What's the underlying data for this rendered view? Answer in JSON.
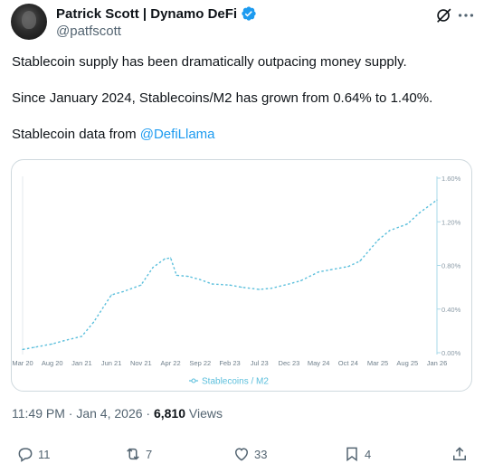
{
  "author": {
    "display_name": "Patrick Scott | Dynamo DeFi",
    "handle": "@patfscott"
  },
  "icons": {
    "verified": "verified-badge-icon",
    "grok": "grok-icon",
    "more": "more-icon",
    "reply": "reply-icon",
    "retweet": "retweet-icon",
    "like": "heart-icon",
    "bookmark": "bookmark-icon",
    "share": "share-icon"
  },
  "tweet": {
    "line1": "Stablecoin supply has been dramatically outpacing money supply.",
    "line2": "Since January 2024, Stablecoins/M2 has grown from 0.64% to 1.40%.",
    "line3_prefix": "Stablecoin data from ",
    "line3_mention": "@DefiLlama"
  },
  "meta": {
    "time": "11:49 PM",
    "separator": "·",
    "date": "Jan 4, 2026",
    "views_count": "6,810",
    "views_label": "Views"
  },
  "actions": {
    "replies": "11",
    "reposts": "7",
    "likes": "33",
    "bookmarks": "4"
  },
  "colors": {
    "accent": "#1d9bf0",
    "series": "#5bbfdc",
    "text_secondary": "#536471"
  },
  "chart_data": {
    "type": "line",
    "legend_label": "Stablecoins / M2",
    "legend_position": "bottom-center",
    "grid": false,
    "y_axis_side": "right",
    "y_ticks": [
      "1.60%",
      "1.20%",
      "0.80%",
      "0.40%",
      "0.00%"
    ],
    "ylim": [
      0,
      1.6
    ],
    "x_tick_labels": [
      "Mar 20",
      "Aug 20",
      "Jan 21",
      "Jun 21",
      "Nov 21",
      "Apr 22",
      "Sep 22",
      "Feb 23",
      "Jul 23",
      "Dec 23",
      "May 24",
      "Oct 24",
      "Mar 25",
      "Aug 25",
      "Jan 26"
    ],
    "series": [
      {
        "name": "Stablecoins / M2",
        "x": [
          "Mar 20",
          "May 20",
          "Aug 20",
          "Oct 20",
          "Jan 21",
          "Mar 21",
          "Jun 21",
          "Aug 21",
          "Nov 21",
          "Jan 22",
          "Mar 22",
          "Apr 22",
          "May 22",
          "Jul 22",
          "Sep 22",
          "Nov 22",
          "Feb 23",
          "Apr 23",
          "Jul 23",
          "Sep 23",
          "Dec 23",
          "Feb 24",
          "May 24",
          "Jul 24",
          "Oct 24",
          "Dec 24",
          "Mar 25",
          "May 25",
          "Aug 25",
          "Oct 25",
          "Jan 26"
        ],
        "values": [
          0.03,
          0.05,
          0.08,
          0.11,
          0.15,
          0.28,
          0.53,
          0.56,
          0.62,
          0.78,
          0.86,
          0.87,
          0.71,
          0.7,
          0.67,
          0.63,
          0.62,
          0.6,
          0.58,
          0.59,
          0.63,
          0.66,
          0.74,
          0.76,
          0.79,
          0.84,
          1.03,
          1.12,
          1.18,
          1.28,
          1.4
        ]
      }
    ]
  }
}
